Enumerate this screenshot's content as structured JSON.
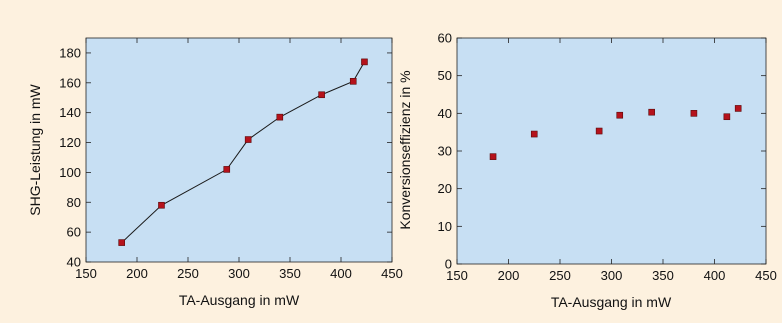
{
  "chart_data": [
    {
      "type": "line",
      "title": "",
      "xlabel": "TA-Ausgang in mW",
      "ylabel": "SHG-Leistung in mW",
      "xlim": [
        150,
        450
      ],
      "ylim": [
        40,
        190
      ],
      "xticks": [
        150,
        200,
        250,
        300,
        350,
        400,
        450
      ],
      "yticks": [
        40,
        60,
        80,
        100,
        120,
        140,
        160,
        180
      ],
      "grid": false,
      "marker_color": "#b5121b",
      "plot_background": "#c7dff3",
      "series": [
        {
          "x": [
            185,
            224,
            288,
            309,
            340,
            381,
            412,
            423
          ],
          "y": [
            53,
            78,
            102,
            122,
            137,
            152,
            161,
            174
          ]
        }
      ]
    },
    {
      "type": "scatter",
      "title": "",
      "xlabel": "TA-Ausgang in mW",
      "ylabel": "Konversionseffizienz in %",
      "xlim": [
        150,
        450
      ],
      "ylim": [
        0,
        60
      ],
      "xticks": [
        150,
        200,
        250,
        300,
        350,
        400,
        450
      ],
      "yticks": [
        0,
        10,
        20,
        30,
        40,
        50,
        60
      ],
      "grid": false,
      "marker_color": "#b5121b",
      "plot_background": "#c7dff3",
      "series": [
        {
          "x": [
            185,
            225,
            288,
            308,
            339,
            380,
            412,
            423
          ],
          "y": [
            28.5,
            34.5,
            35.3,
            39.5,
            40.3,
            40.0,
            39.1,
            41.3
          ]
        }
      ]
    }
  ]
}
